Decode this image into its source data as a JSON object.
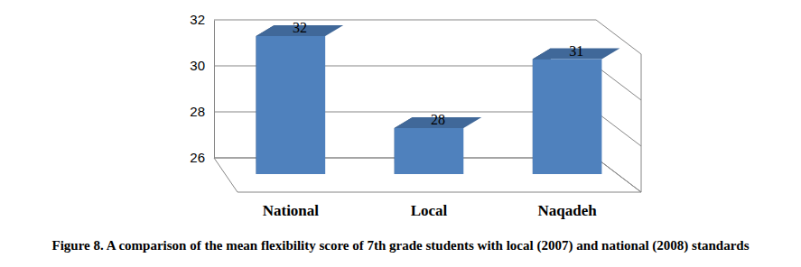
{
  "chart_data": {
    "type": "bar",
    "title": "Figure 8. A comparison of the mean flexibility score of 7th grade students with local (2007) and national (2008) standards",
    "categories": [
      "National",
      "Local",
      "Naqadeh"
    ],
    "values": [
      32,
      28,
      31
    ],
    "color": "#4f81bd",
    "ylim": [
      26,
      32
    ],
    "yticks": [
      26,
      28,
      30,
      32
    ],
    "grid": true,
    "data_labels": true
  }
}
